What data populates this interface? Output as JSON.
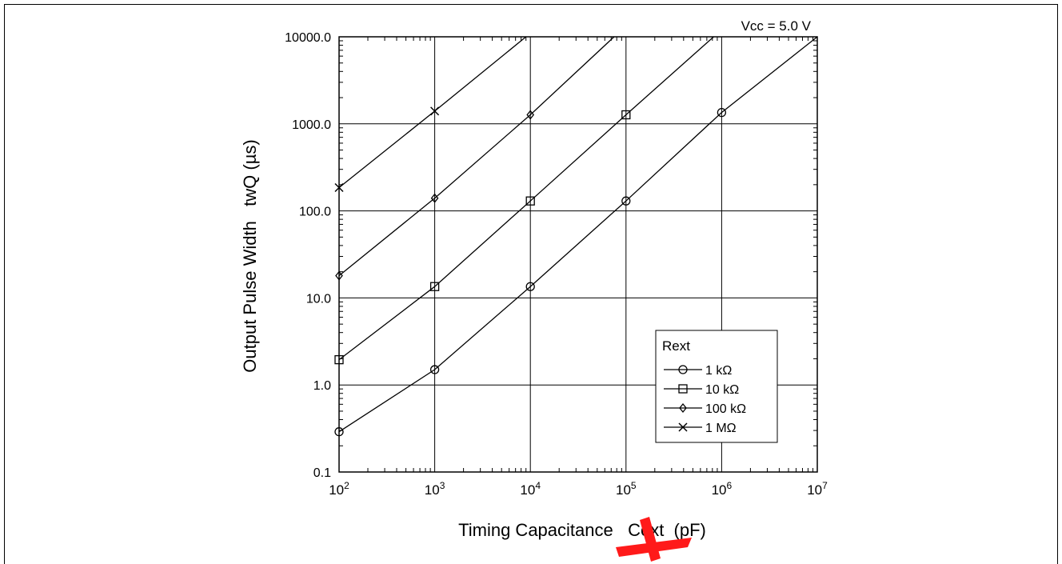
{
  "chart_data": {
    "type": "line",
    "annotation": "Vcc = 5.0 V",
    "xlabel": "Timing Capacitance   Cext  (pF)",
    "ylabel": "Output Pulse Width   twQ (µs)",
    "x_scale": "log",
    "y_scale": "log",
    "xlim": [
      100,
      10000000
    ],
    "ylim": [
      0.1,
      10000
    ],
    "grid": true,
    "x_ticks": [
      {
        "value": 100,
        "base": "10",
        "exp": "2"
      },
      {
        "value": 1000,
        "base": "10",
        "exp": "3"
      },
      {
        "value": 10000,
        "base": "10",
        "exp": "4"
      },
      {
        "value": 100000,
        "base": "10",
        "exp": "5"
      },
      {
        "value": 1000000,
        "base": "10",
        "exp": "6"
      },
      {
        "value": 10000000,
        "base": "10",
        "exp": "7"
      }
    ],
    "y_ticks": [
      {
        "value": 0.1,
        "label": "0.1"
      },
      {
        "value": 1,
        "label": "1.0"
      },
      {
        "value": 10,
        "label": "10.0"
      },
      {
        "value": 100,
        "label": "100.0"
      },
      {
        "value": 1000,
        "label": "1000.0"
      },
      {
        "value": 10000,
        "label": "10000.0"
      }
    ],
    "legend": {
      "title": "Rext",
      "position": "lower-right"
    },
    "series": [
      {
        "name": "1 kΩ",
        "marker": "circle",
        "x": [
          100,
          1000,
          10000,
          100000,
          1000000,
          10000000
        ],
        "y": [
          0.29,
          1.5,
          13.5,
          130,
          1350,
          10000
        ],
        "marked_x": [
          100,
          1000,
          10000,
          100000,
          1000000
        ]
      },
      {
        "name": "10 kΩ",
        "marker": "square",
        "x": [
          100,
          1000,
          10000,
          100000,
          825000
        ],
        "y": [
          1.95,
          13.5,
          130,
          1270,
          10000
        ],
        "marked_x": [
          100,
          1000,
          10000,
          100000
        ]
      },
      {
        "name": "100 kΩ",
        "marker": "diamond",
        "x": [
          100,
          1000,
          10000,
          75000
        ],
        "y": [
          18,
          140,
          1270,
          10000
        ],
        "marked_x": [
          100,
          1000,
          10000
        ]
      },
      {
        "name": "1 MΩ",
        "marker": "x",
        "x": [
          100,
          1000,
          9000
        ],
        "y": [
          185,
          1400,
          10000
        ],
        "marked_x": [
          100,
          1000
        ]
      }
    ]
  },
  "watermark_color": "#ff1a1a"
}
